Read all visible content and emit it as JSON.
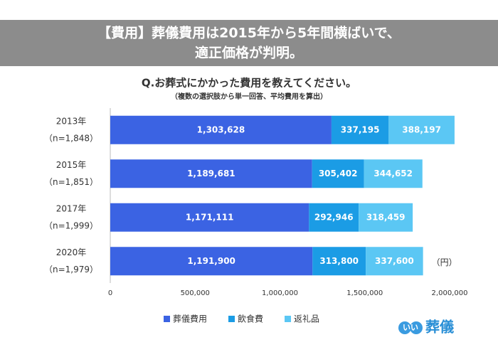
{
  "header": {
    "lines": [
      "【費用】葬儀費用は2015年から5年間横ばいで、",
      "適正価格が判明。"
    ]
  },
  "chart_data": {
    "type": "stacked-barh",
    "title": "Q.お葬式にかかった費用を教えてください。",
    "subtitle": "（複数の選択肢から単一回答、平均費用を算出）",
    "categories": [
      "2013年",
      "2015年",
      "2017年",
      "2020年"
    ],
    "sample_sizes": [
      "（n=1,848）",
      "（n=1,851）",
      "（n=1,999）",
      "（n=1,979）"
    ],
    "series": [
      {
        "name": "葬儀費用",
        "color": "#3b63e3",
        "values": [
          1303628,
          1189681,
          1171111,
          1191900
        ],
        "value_labels": [
          "1,303,628",
          "1,189,681",
          "1,171,111",
          "1,191,900"
        ]
      },
      {
        "name": "飲食費",
        "color": "#1b9ce5",
        "values": [
          337195,
          305402,
          292946,
          313800
        ],
        "value_labels": [
          "337,195",
          "305,402",
          "292,946",
          "313,800"
        ]
      },
      {
        "name": "返礼品",
        "color": "#5bc7f4",
        "values": [
          388197,
          344652,
          318459,
          337600
        ],
        "value_labels": [
          "388,197",
          "344,652",
          "318,459",
          "337,600"
        ]
      }
    ],
    "xlim": [
      0,
      2000000
    ],
    "xticks": [
      0,
      {
        "value": 500000,
        "label": "500,000"
      },
      {
        "value": 1000000,
        "label": "1,000,000"
      },
      {
        "value": 1500000,
        "label": "1,500,000"
      },
      {
        "value": 2000000,
        "label": "2,000,000"
      }
    ],
    "unit_label": "（円）",
    "grid": false,
    "legend": "bottom"
  },
  "logo": {
    "circle_text": "いい",
    "text": "葬儀"
  }
}
